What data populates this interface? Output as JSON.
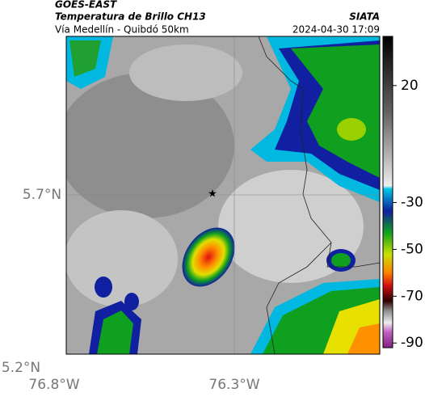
{
  "header": {
    "satellite": "GOES-EAST",
    "product": "Temperatura de Brillo CH13",
    "route": "Vía Medellín - Quibdó 50km",
    "agency": "SIATA",
    "datetime": "2024-04-30 17:09"
  },
  "map": {
    "lat_labels": [
      "5.7°N",
      "5.2°N"
    ],
    "lon_labels": [
      "76.8°W",
      "76.3°W"
    ]
  },
  "colorbar": {
    "lim": [
      41,
      -92
    ],
    "ticks": [
      20,
      -30,
      -50,
      -70,
      -90
    ]
  }
}
